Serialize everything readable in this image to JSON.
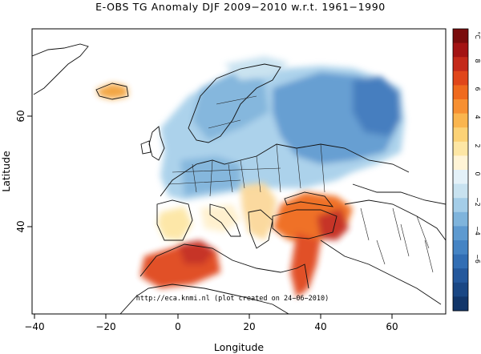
{
  "title": "E-OBS TG Anomaly  DJF 2009−2010 w.r.t. 1961−1990",
  "xlabel": "Longitude",
  "ylabel": "Latitude",
  "credit": "http://eca.knmi.nl (plot created on 24−06−2010)",
  "colorbar": {
    "unit": "°C",
    "tick_labels": [
      "8",
      "6",
      "4",
      "2",
      "0",
      "−2",
      "−4",
      "−6"
    ],
    "colors": [
      "#7a0c0c",
      "#a31414",
      "#c42a1a",
      "#e0461a",
      "#ef6a1e",
      "#f79032",
      "#fab54e",
      "#fcd276",
      "#fde6a4",
      "#fff4d6",
      "#e4f1f8",
      "#c8e2f0",
      "#a4cde8",
      "#7fb4dc",
      "#5e9ad0",
      "#4584c4",
      "#326eb4",
      "#24589c",
      "#1a4784",
      "#12366a"
    ]
  },
  "map": {
    "lon_range": [
      -42,
      76
    ],
    "lat_range": [
      25,
      75
    ],
    "x_ticks": [
      "−40",
      "−20",
      "0",
      "20",
      "40",
      "60"
    ],
    "y_ticks": [
      "40",
      "60"
    ]
  }
}
